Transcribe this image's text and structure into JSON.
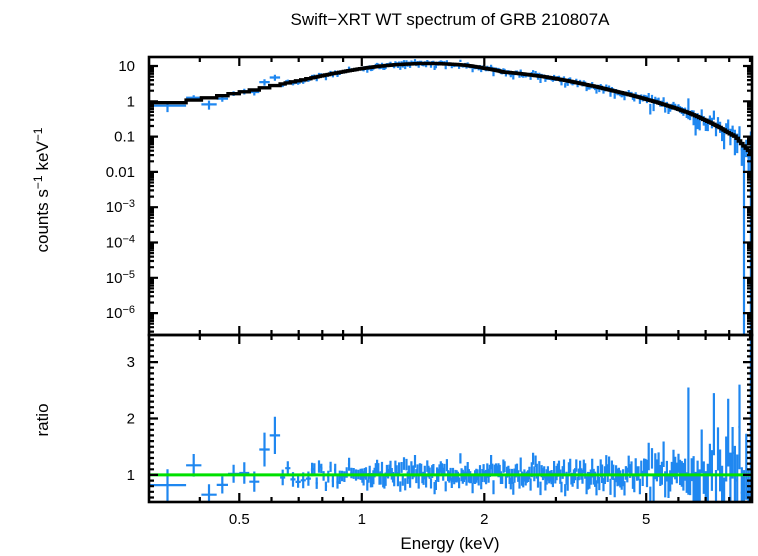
{
  "figure": {
    "background": "#ffffff"
  },
  "chart_data": {
    "type": "line",
    "title": "Swift−XRT WT spectrum of GRB 210807A",
    "xlabel": "Energy (keV)",
    "xscale": "log",
    "xlim": [
      0.3,
      9.1
    ],
    "grid": false,
    "legend": false,
    "xticks": [
      {
        "value": 0.5,
        "label": "0.5"
      },
      {
        "value": 1,
        "label": "1"
      },
      {
        "value": 2,
        "label": "2"
      },
      {
        "value": 5,
        "label": "5"
      }
    ],
    "panels": [
      {
        "name": "spectrum",
        "ylabel_parts": {
          "t1": "counts s",
          "s1": "−1",
          "t2": "keV",
          "s2": "−1"
        },
        "yscale": "log",
        "ylim": [
          2.4e-07,
          18
        ],
        "ytick_values": [
          10,
          1,
          0.1,
          0.01,
          0.001,
          0.0001,
          1e-05,
          1e-06
        ],
        "ytick_labels": [
          {
            "t": "10"
          },
          {
            "t": "1"
          },
          {
            "t": "0.1"
          },
          {
            "t": "0.01"
          },
          {
            "t": "10",
            "s": "−3"
          },
          {
            "t": "10",
            "s": "−4"
          },
          {
            "t": "10",
            "s": "−5"
          },
          {
            "t": "10",
            "s": "−6"
          }
        ],
        "model_color": "#000000",
        "data_color": "#1f87f0",
        "model_curve_keV_vs_counts": [
          [
            0.3,
            0.88
          ],
          [
            0.34,
            0.92
          ],
          [
            0.37,
            1.0
          ],
          [
            0.4,
            1.15
          ],
          [
            0.44,
            1.35
          ],
          [
            0.47,
            1.55
          ],
          [
            0.5,
            1.75
          ],
          [
            0.54,
            2.05
          ],
          [
            0.57,
            2.35
          ],
          [
            0.6,
            2.65
          ],
          [
            0.63,
            3.0
          ],
          [
            0.68,
            3.6
          ],
          [
            0.72,
            4.1
          ],
          [
            0.76,
            4.7
          ],
          [
            0.8,
            5.3
          ],
          [
            0.85,
            6.1
          ],
          [
            0.9,
            6.9
          ],
          [
            0.95,
            7.7
          ],
          [
            1.0,
            8.5
          ],
          [
            1.1,
            9.8
          ],
          [
            1.2,
            10.8
          ],
          [
            1.3,
            11.4
          ],
          [
            1.4,
            11.8
          ],
          [
            1.5,
            11.8
          ],
          [
            1.6,
            11.5
          ],
          [
            1.7,
            11.1
          ],
          [
            1.8,
            10.5
          ],
          [
            1.86,
            10.0
          ],
          [
            1.92,
            9.4
          ],
          [
            2.0,
            8.7
          ],
          [
            2.1,
            7.9
          ],
          [
            2.18,
            7.2
          ],
          [
            2.24,
            6.7
          ],
          [
            2.32,
            6.5
          ],
          [
            2.45,
            6.1
          ],
          [
            2.6,
            5.6
          ],
          [
            2.8,
            5.0
          ],
          [
            3.0,
            4.4
          ],
          [
            3.25,
            3.7
          ],
          [
            3.5,
            3.1
          ],
          [
            3.8,
            2.55
          ],
          [
            4.1,
            2.05
          ],
          [
            4.4,
            1.7
          ],
          [
            4.7,
            1.4
          ],
          [
            5.0,
            1.15
          ],
          [
            5.3,
            0.95
          ],
          [
            5.6,
            0.78
          ],
          [
            6.0,
            0.6
          ],
          [
            6.4,
            0.46
          ],
          [
            6.8,
            0.34
          ],
          [
            7.2,
            0.25
          ],
          [
            7.6,
            0.18
          ],
          [
            8.0,
            0.125
          ],
          [
            8.3,
            0.1
          ],
          [
            8.6,
            0.062
          ],
          [
            8.9,
            0.042
          ],
          [
            9.1,
            0.033
          ]
        ]
      },
      {
        "name": "ratio",
        "ylabel": "ratio",
        "yscale": "linear",
        "ylim": [
          0.52,
          3.48
        ],
        "ytick_values": [
          1,
          2,
          3
        ],
        "ytick_labels": [
          "1",
          "2",
          "3"
        ],
        "reference_line_y": 1,
        "reference_line_color": "#00e000",
        "data_color": "#1f87f0"
      }
    ],
    "binning": {
      "seed": 20210807,
      "segments": [
        {
          "e0": 0.3,
          "e1": 0.37,
          "n": 1,
          "sigma": 0.28
        },
        {
          "e0": 0.37,
          "e1": 0.44,
          "n": 2,
          "sigma": 0.17
        },
        {
          "e0": 0.44,
          "e1": 0.5,
          "n": 2,
          "sigma": 0.15
        },
        {
          "e0": 0.5,
          "e1": 0.56,
          "n": 2,
          "sigma": 0.18
        },
        {
          "e0": 0.56,
          "e1": 0.63,
          "n": 2,
          "sigma": 0.2
        },
        {
          "e0": 0.63,
          "e1": 0.75,
          "n": 6,
          "sigma": 0.12
        },
        {
          "e0": 0.75,
          "e1": 1.0,
          "n": 22,
          "sigma": 0.1
        },
        {
          "e0": 1.0,
          "e1": 2.0,
          "n": 100,
          "sigma": 0.105
        },
        {
          "e0": 2.0,
          "e1": 3.5,
          "n": 80,
          "sigma": 0.115
        },
        {
          "e0": 3.5,
          "e1": 5.0,
          "n": 45,
          "sigma": 0.14
        },
        {
          "e0": 5.0,
          "e1": 6.5,
          "n": 28,
          "sigma": 0.21
        },
        {
          "e0": 6.5,
          "e1": 8.0,
          "n": 18,
          "sigma": 0.35
        },
        {
          "e0": 8.0,
          "e1": 9.1,
          "n": 10,
          "sigma": 0.55
        }
      ]
    },
    "notable_points": [
      {
        "e": 0.33,
        "ratio": 0.82,
        "sigma": 0.28
      },
      {
        "e": 0.4,
        "ratio": 1.17,
        "sigma": 0.2
      },
      {
        "e": 0.47,
        "ratio": 1.02,
        "sigma": 0.16
      },
      {
        "e": 0.53,
        "ratio": 0.88,
        "sigma": 0.18
      },
      {
        "e": 0.58,
        "ratio": 1.45,
        "sigma": 0.3
      },
      {
        "e": 0.615,
        "ratio": 1.7,
        "sigma": 0.33
      },
      {
        "e": 0.67,
        "ratio": 0.92,
        "sigma": 0.13
      },
      {
        "e": 6.35,
        "ratio": 1.6,
        "sigma": 0.95
      },
      {
        "e": 7.3,
        "ratio": 1.9,
        "sigma": 0.55
      },
      {
        "e": 7.95,
        "ratio": 1.75,
        "sigma": 0.6
      },
      {
        "e": 8.45,
        "ratio": 1.85,
        "sigma": 0.75
      },
      {
        "e": 9.05,
        "ratio": 0.75,
        "sigma": 3.2
      }
    ]
  }
}
